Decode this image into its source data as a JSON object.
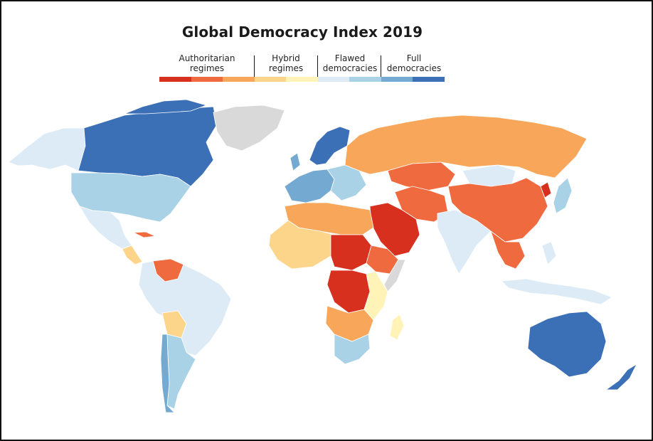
{
  "title": "Global Democracy Index 2019",
  "legend": {
    "groups": [
      {
        "label": "Authoritarian regimes",
        "lines": [
          "Authoritarian",
          "regimes"
        ]
      },
      {
        "label": "Hybrid regimes",
        "lines": [
          "Hybrid",
          "regimes"
        ]
      },
      {
        "label": "Flawed democracies",
        "lines": [
          "Flawed",
          "democracies"
        ]
      },
      {
        "label": "Full democracies",
        "lines": [
          "Full",
          "democracies"
        ]
      }
    ],
    "swatches": [
      "#d7301f",
      "#ef6a3e",
      "#f7a65a",
      "#fdd58a",
      "#fff3b8",
      "#dcebf5",
      "#a9d2e6",
      "#74a9d2",
      "#3b6fb6"
    ]
  },
  "colors": {
    "authoritarian_dark": "#d7301f",
    "authoritarian_mid": "#ef6a3e",
    "authoritarian_light": "#f7a65a",
    "hybrid_dark": "#fdd58a",
    "hybrid_light": "#fff3b8",
    "flawed_light": "#dcebf5",
    "flawed_mid": "#a9d2e6",
    "full_light": "#74a9d2",
    "full_dark": "#3b6fb6",
    "no_data": "#d9d9d9"
  },
  "regions": [
    {
      "name": "canada",
      "color": "#3b6fb6"
    },
    {
      "name": "alaska",
      "color": "#dcebf5"
    },
    {
      "name": "usa",
      "color": "#a9d2e6"
    },
    {
      "name": "greenland",
      "color": "#d9d9d9"
    },
    {
      "name": "mexico",
      "color": "#dcebf5"
    },
    {
      "name": "cuba",
      "color": "#ef6a3e"
    },
    {
      "name": "venezuela",
      "color": "#ef6a3e"
    },
    {
      "name": "brazil",
      "color": "#dcebf5"
    },
    {
      "name": "bolivia",
      "color": "#fdd58a"
    },
    {
      "name": "argentina",
      "color": "#a9d2e6"
    },
    {
      "name": "chile",
      "color": "#74a9d2"
    },
    {
      "name": "scandinavia",
      "color": "#3b6fb6"
    },
    {
      "name": "western-europe",
      "color": "#74a9d2"
    },
    {
      "name": "eastern-europe",
      "color": "#a9d2e6"
    },
    {
      "name": "russia",
      "color": "#f7a65a"
    },
    {
      "name": "kazakhstan",
      "color": "#ef6a3e"
    },
    {
      "name": "china",
      "color": "#ef6a3e"
    },
    {
      "name": "mongolia",
      "color": "#dcebf5"
    },
    {
      "name": "iran",
      "color": "#ef6a3e"
    },
    {
      "name": "saudi-arabia",
      "color": "#d7301f"
    },
    {
      "name": "india",
      "color": "#dcebf5"
    },
    {
      "name": "southeast-asia",
      "color": "#ef6a3e"
    },
    {
      "name": "indonesia",
      "color": "#dcebf5"
    },
    {
      "name": "australia",
      "color": "#3b6fb6"
    },
    {
      "name": "new-zealand",
      "color": "#3b6fb6"
    },
    {
      "name": "north-africa",
      "color": "#f7a65a"
    },
    {
      "name": "sahel",
      "color": "#fdd58a"
    },
    {
      "name": "sudan-chad",
      "color": "#d7301f"
    },
    {
      "name": "drc",
      "color": "#d7301f"
    },
    {
      "name": "ethiopia",
      "color": "#ef6a3e"
    },
    {
      "name": "somalia",
      "color": "#d9d9d9"
    },
    {
      "name": "east-africa",
      "color": "#fff3b8"
    },
    {
      "name": "southern-africa",
      "color": "#a9d2e6"
    },
    {
      "name": "angola-zambia",
      "color": "#f7a65a"
    },
    {
      "name": "madagascar",
      "color": "#fff3b8"
    },
    {
      "name": "japan",
      "color": "#a9d2e6"
    },
    {
      "name": "north-korea",
      "color": "#d7301f"
    }
  ]
}
